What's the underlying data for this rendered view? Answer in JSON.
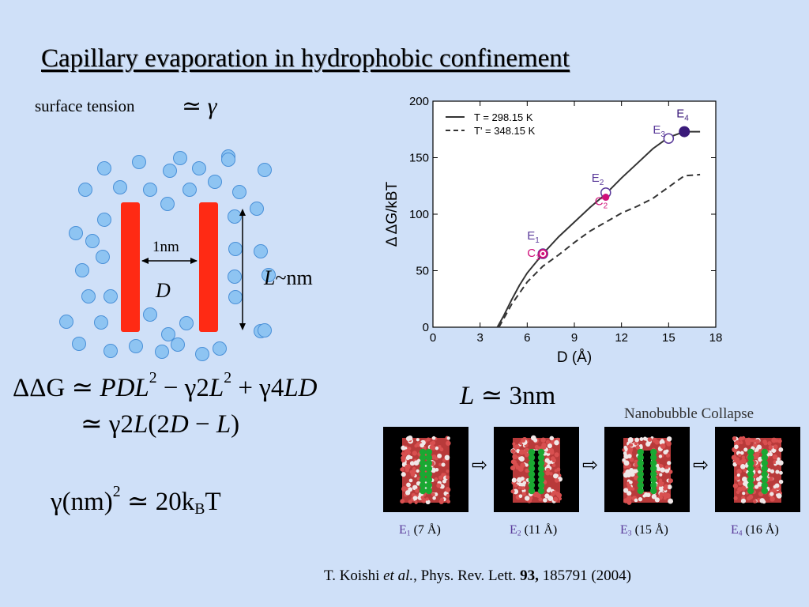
{
  "slide": {
    "title": "Capillary evaporation in hydrophobic confinement",
    "surface_tension_label": "surface tension",
    "surface_tension_symbol": "≃ γ"
  },
  "schematic": {
    "gap_label": "1nm",
    "d_label": "D",
    "length_label_italic": "L",
    "length_label_rest": "~nm",
    "colors": {
      "wall": "#ff2a14",
      "water": "#8ec4f2",
      "water_edge": "#4a90d8"
    }
  },
  "equations": {
    "eq1": {
      "lhs": "ΔΔG ≃ ",
      "t1": "PDL",
      "t1_exp": "2",
      "t2": " − γ2",
      "t2b": "L",
      "t2_exp": "2",
      "t3": " + γ4",
      "t3b": "LD"
    },
    "eq2": {
      "a": "≃ γ2",
      "b": "L",
      "c": "(2",
      "d": "D",
      "e": " − ",
      "f": "L",
      "g": ")"
    },
    "eq3": {
      "a": "γ(nm)",
      "exp": "2",
      "b": " ≃ 20k",
      "sub": "B",
      "c": "T"
    },
    "eq_l": {
      "a": "L",
      "b": " ≃ 3nm"
    }
  },
  "chart_data": {
    "type": "line",
    "xlabel": "D (Å)",
    "ylabel": "Δ ΔG/kBT",
    "xlim": [
      0,
      18
    ],
    "ylim": [
      0,
      200
    ],
    "xticks": [
      0,
      3,
      6,
      9,
      12,
      15,
      18
    ],
    "yticks": [
      0,
      50,
      100,
      150,
      200
    ],
    "legend": {
      "placement": "top-left",
      "entries": [
        "T = 298.15 K",
        "T' = 348.15 K"
      ]
    },
    "series": [
      {
        "name": "T = 298.15 K",
        "style": "solid",
        "x": [
          4.1,
          4.5,
          5.0,
          5.5,
          6.0,
          7.0,
          8.0,
          9.0,
          10.0,
          11.0,
          12.0,
          13.0,
          14.0,
          15.0,
          16.0,
          17.0
        ],
        "y": [
          0,
          10,
          24,
          37,
          48,
          65,
          80,
          93,
          106,
          118,
          132,
          145,
          158,
          168,
          173,
          173
        ]
      },
      {
        "name": "T' = 348.15 K",
        "style": "dashed",
        "x": [
          4.2,
          4.6,
          5.0,
          6.0,
          7.0,
          8.0,
          9.0,
          10.0,
          11.0,
          12.0,
          13.0,
          14.0,
          15.0,
          16.0,
          17.0
        ],
        "y": [
          0,
          10,
          20,
          40,
          54,
          64,
          75,
          85,
          93,
          101,
          107,
          114,
          124,
          134,
          135
        ]
      }
    ],
    "points": [
      {
        "label": "E",
        "sub": "1",
        "x": 7.0,
        "y": 65,
        "style": "open",
        "color": "#5a3a9a"
      },
      {
        "label": "C",
        "sub": "1",
        "x": 7.0,
        "y": 65,
        "style": "ring",
        "color": "#d0107a"
      },
      {
        "label": "E",
        "sub": "2",
        "x": 11.0,
        "y": 119,
        "style": "open",
        "color": "#5a3a9a"
      },
      {
        "label": "C",
        "sub": "2",
        "x": 11.0,
        "y": 115,
        "style": "filled",
        "color": "#d0107a"
      },
      {
        "label": "E",
        "sub": "3",
        "x": 15.0,
        "y": 167,
        "style": "open",
        "color": "#5a3a9a"
      },
      {
        "label": "E",
        "sub": "4",
        "x": 16.0,
        "y": 173,
        "style": "filled",
        "color": "#3a1a7a"
      }
    ]
  },
  "simulation": {
    "title": "Nanobubble Collapse",
    "frames": [
      {
        "e": "E",
        "sub": "1",
        "text": " (7 Å)"
      },
      {
        "e": "E",
        "sub": "2",
        "text": " (11 Å)"
      },
      {
        "e": "E",
        "sub": "3",
        "text": " (15 Å)"
      },
      {
        "e": "E",
        "sub": "4",
        "text": " (16 Å)"
      }
    ],
    "arrow": "⇨"
  },
  "reference": {
    "authors": "T. Koishi ",
    "etal": "et al.",
    "journal": ", Phys. Rev. Lett. ",
    "volume": "93,",
    "rest": " 185791  (2004)"
  }
}
